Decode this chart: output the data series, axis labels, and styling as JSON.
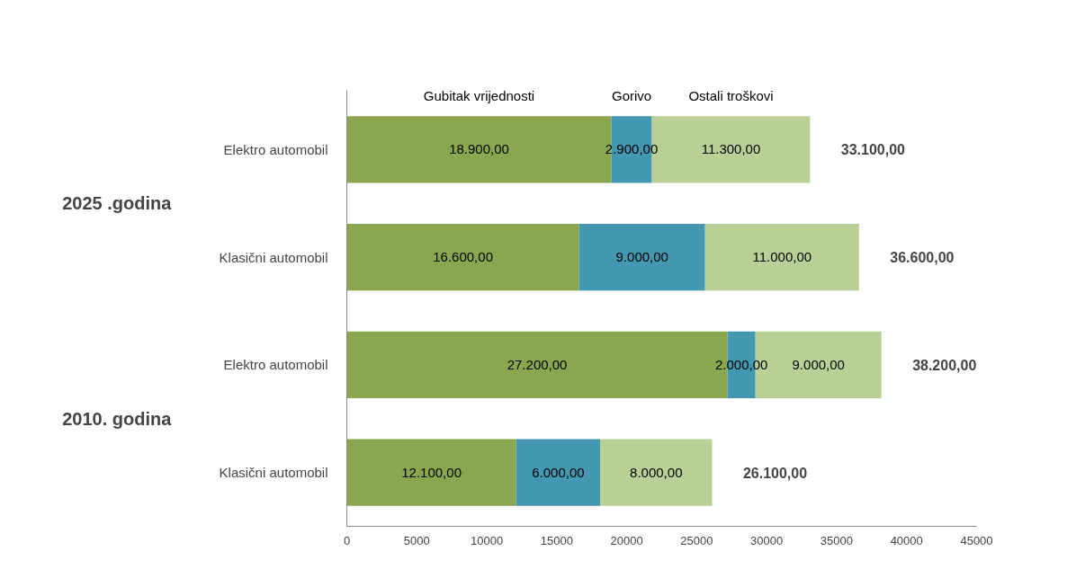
{
  "chart_data": {
    "type": "bar",
    "orientation": "horizontal",
    "stacked": true,
    "categories": [
      "Elektro automobil",
      "Klasični automobil",
      "Elektro automobil",
      "Klasični automobil"
    ],
    "series": [
      {
        "name": "Gubitak vrijednosti",
        "color": "#8aa64e",
        "values": [
          18900,
          16600,
          27200,
          12100
        ],
        "value_labels": [
          "18.900,00",
          "16.600,00",
          "27.200,00",
          "12.100,00"
        ]
      },
      {
        "name": "Gorivo",
        "color": "#4397b0",
        "values": [
          2900,
          9000,
          2000,
          6000
        ],
        "value_labels": [
          "2.900,00",
          "9.000,00",
          "2.000,00",
          "6.000,00"
        ]
      },
      {
        "name": "Ostali troškovi",
        "color": "#b8cf96",
        "values": [
          11300,
          11000,
          9000,
          8000
        ],
        "value_labels": [
          "11.300,00",
          "11.000,00",
          "9.000,00",
          "8.000,00"
        ]
      }
    ],
    "totals": [
      "33.100,00",
      "36.600,00",
      "38.200,00",
      "26.100,00"
    ],
    "annotations": [
      "2025 .godina",
      "2010. godina"
    ],
    "xlim": [
      0,
      45000
    ],
    "xticks": [
      0,
      5000,
      10000,
      15000,
      20000,
      25000,
      30000,
      35000,
      40000,
      45000
    ],
    "grid": false
  }
}
